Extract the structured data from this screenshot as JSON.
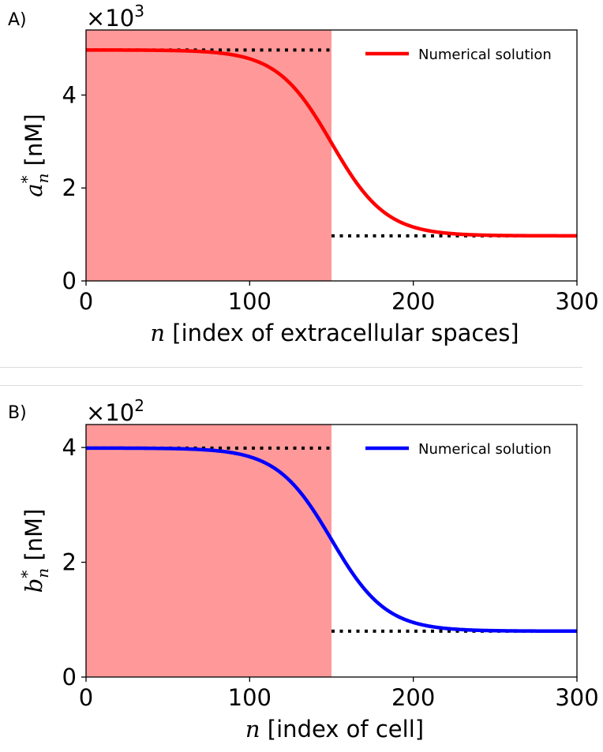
{
  "panels": [
    {
      "label": "A)",
      "chart_data": {
        "type": "line",
        "multiplier_text": "×10",
        "multiplier_exp": "3",
        "x": {
          "label_math": "n",
          "label_text": "[index of extracellular spaces]",
          "lim": [
            0,
            300
          ],
          "ticks": [
            0,
            100,
            200,
            300
          ]
        },
        "y": {
          "label_math": "a",
          "label_sup": "*",
          "label_sub": "n",
          "label_text": "[nM]",
          "lim": [
            0,
            5.4
          ],
          "ticks": [
            0,
            2,
            4
          ]
        },
        "shaded_region": {
          "x": [
            0,
            150
          ],
          "color": "#ff9999"
        },
        "series": [
          {
            "name": "Numerical solution",
            "color": "#ff0000",
            "high": 4.97,
            "low": 0.97,
            "midpoint": 150,
            "steepness": 0.06
          }
        ],
        "reference_lines": [
          {
            "x": [
              0,
              150
            ],
            "y": 4.97,
            "style": "dotted",
            "color": "#000000"
          },
          {
            "x": [
              150,
              300
            ],
            "y": 0.97,
            "style": "dotted",
            "color": "#000000"
          }
        ],
        "legend": {
          "position": "top-right"
        }
      }
    },
    {
      "label": "B)",
      "chart_data": {
        "type": "line",
        "multiplier_text": "×10",
        "multiplier_exp": "2",
        "x": {
          "label_math": "n",
          "label_text": "[index of cell]",
          "lim": [
            0,
            300
          ],
          "ticks": [
            0,
            100,
            200,
            300
          ]
        },
        "y": {
          "label_math": "b",
          "label_sup": "*",
          "label_sub": "n",
          "label_text": "[nM]",
          "lim": [
            0,
            4.4
          ],
          "ticks": [
            0,
            2,
            4
          ]
        },
        "shaded_region": {
          "x": [
            0,
            150
          ],
          "color": "#ff9999"
        },
        "series": [
          {
            "name": "Numerical solution",
            "color": "#0000ff",
            "high": 3.99,
            "low": 0.8,
            "midpoint": 150,
            "steepness": 0.06
          }
        ],
        "reference_lines": [
          {
            "x": [
              0,
              150
            ],
            "y": 3.99,
            "style": "dotted",
            "color": "#000000"
          },
          {
            "x": [
              150,
              300
            ],
            "y": 0.8,
            "style": "dotted",
            "color": "#000000"
          }
        ],
        "legend": {
          "position": "top-right"
        }
      }
    }
  ]
}
